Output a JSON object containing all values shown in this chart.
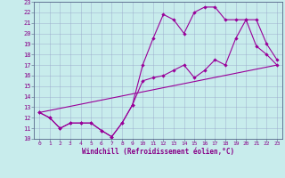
{
  "xlabel": "Windchill (Refroidissement éolien,°C)",
  "bg_color": "#c8ecec",
  "line_color": "#990099",
  "grid_color": "#99aacc",
  "xlim": [
    -0.5,
    23.5
  ],
  "ylim": [
    10,
    23
  ],
  "xticks": [
    0,
    1,
    2,
    3,
    4,
    5,
    6,
    7,
    8,
    9,
    10,
    11,
    12,
    13,
    14,
    15,
    16,
    17,
    18,
    19,
    20,
    21,
    22,
    23
  ],
  "yticks": [
    10,
    11,
    12,
    13,
    14,
    15,
    16,
    17,
    18,
    19,
    20,
    21,
    22,
    23
  ],
  "line1_x": [
    0,
    1,
    2,
    3,
    4,
    5,
    6,
    7,
    8,
    9,
    10,
    11,
    12,
    13,
    14,
    15,
    16,
    17,
    18,
    19,
    20,
    21,
    22,
    23
  ],
  "line1_y": [
    12.5,
    12.0,
    11.0,
    11.5,
    11.5,
    11.5,
    10.8,
    10.2,
    11.5,
    13.2,
    15.5,
    15.8,
    16.0,
    16.5,
    17.0,
    15.8,
    16.5,
    17.5,
    17.0,
    19.5,
    21.3,
    21.3,
    19.0,
    17.5
  ],
  "line2_x": [
    0,
    1,
    2,
    3,
    4,
    5,
    6,
    7,
    8,
    9,
    10,
    11,
    12,
    13,
    14,
    15,
    16,
    17,
    18,
    19,
    20,
    21,
    22,
    23
  ],
  "line2_y": [
    12.5,
    12.0,
    11.0,
    11.5,
    11.5,
    11.5,
    10.8,
    10.2,
    11.5,
    13.2,
    17.0,
    19.5,
    21.8,
    21.3,
    20.0,
    22.0,
    22.5,
    22.5,
    21.3,
    21.3,
    21.3,
    18.8,
    18.0,
    17.0
  ],
  "line3_x": [
    0,
    23
  ],
  "line3_y": [
    12.5,
    17.0
  ]
}
